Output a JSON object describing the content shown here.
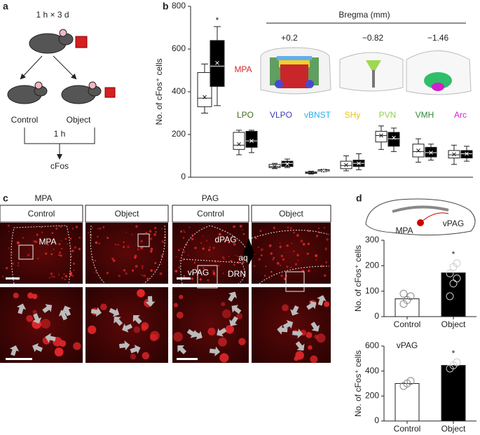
{
  "panels": [
    "a",
    "b",
    "c",
    "d"
  ],
  "diagram": {
    "schedule": "1 h × 3 d",
    "control": "Control",
    "object": "Object",
    "delay": "1 h",
    "readout": "cFos"
  },
  "images": {
    "groups": [
      "MPA",
      "PAG"
    ],
    "columns": [
      "Control",
      "Object",
      "Control",
      "Object"
    ],
    "regions": {
      "mpa": "MPA",
      "dpag": "dPAG",
      "aq": "aq",
      "vpag": "vPAG",
      "drn": "DRN"
    }
  },
  "inset": {
    "regions": [
      "MPA",
      "vPAG"
    ]
  },
  "chart_data": [
    {
      "type": "box",
      "y_label": "No. of cFos⁺ cells",
      "header": "Bregma (mm)",
      "levels": [
        "+0.2",
        "−0.82",
        "−1.46"
      ],
      "annotations": [
        "*"
      ],
      "categories": [
        "MPA",
        "LPO",
        "VLPO",
        "vBNST",
        "SHy",
        "PVN",
        "VMH",
        "Arc"
      ],
      "label_colors": [
        "#d7262b",
        "#3f6d1e",
        "#3a3ab8",
        "#2aaee0",
        "#e8c21a",
        "#8fd14f",
        "#2e8b3c",
        "#d21fcf"
      ],
      "ylim": [
        0,
        800
      ],
      "yticks": [
        0,
        200,
        400,
        600,
        800
      ],
      "series": [
        {
          "color": "#ffffff",
          "values": [
            {
              "min": 300,
              "q1": 330,
              "median": 370,
              "q3": 490,
              "max": 530,
              "mean": 375
            },
            {
              "min": 105,
              "q1": 130,
              "median": 150,
              "q3": 210,
              "max": 220,
              "mean": 155
            },
            {
              "min": 40,
              "q1": 45,
              "median": 50,
              "q3": 60,
              "max": 65,
              "mean": 50
            },
            {
              "min": 15,
              "q1": 18,
              "median": 22,
              "q3": 25,
              "max": 28,
              "mean": 22
            },
            {
              "min": 30,
              "q1": 40,
              "median": 55,
              "q3": 75,
              "max": 100,
              "mean": 57
            },
            {
              "min": 130,
              "q1": 165,
              "median": 195,
              "q3": 215,
              "max": 240,
              "mean": 195
            },
            {
              "min": 70,
              "q1": 95,
              "median": 120,
              "q3": 155,
              "max": 180,
              "mean": 125
            },
            {
              "min": 60,
              "q1": 90,
              "median": 105,
              "q3": 125,
              "max": 150,
              "mean": 107
            }
          ]
        },
        {
          "color": "#000000",
          "values": [
            {
              "min": 335,
              "q1": 425,
              "median": 520,
              "q3": 640,
              "max": 705,
              "mean": 535
            },
            {
              "min": 115,
              "q1": 140,
              "median": 170,
              "q3": 215,
              "max": 220,
              "mean": 170
            },
            {
              "min": 45,
              "q1": 50,
              "median": 65,
              "q3": 75,
              "max": 85,
              "mean": 62
            },
            {
              "min": 25,
              "q1": 28,
              "median": 30,
              "q3": 35,
              "max": 38,
              "mean": 32
            },
            {
              "min": 35,
              "q1": 50,
              "median": 65,
              "q3": 80,
              "max": 110,
              "mean": 65
            },
            {
              "min": 120,
              "q1": 145,
              "median": 180,
              "q3": 210,
              "max": 230,
              "mean": 185
            },
            {
              "min": 80,
              "q1": 95,
              "median": 115,
              "q3": 140,
              "max": 155,
              "mean": 115
            },
            {
              "min": 75,
              "q1": 90,
              "median": 110,
              "q3": 125,
              "max": 145,
              "mean": 110
            }
          ]
        }
      ]
    },
    {
      "type": "bar",
      "y_label": "No. of cFos⁺ cells",
      "annotations": [
        "*"
      ],
      "categories": [
        "Control",
        "Object"
      ],
      "values": [
        70,
        172
      ],
      "colors": [
        "#ffffff",
        "#000000"
      ],
      "points": [
        [
          50,
          65,
          80,
          90
        ],
        [
          80,
          130,
          150,
          170,
          195,
          210
        ]
      ],
      "ylim": [
        0,
        300
      ],
      "yticks": [
        0,
        100,
        200,
        300
      ]
    },
    {
      "type": "bar",
      "title": "vPAG",
      "y_label": "No. of cFos⁺ cells",
      "annotations": [
        "*"
      ],
      "categories": [
        "Control",
        "Object"
      ],
      "values": [
        300,
        445
      ],
      "colors": [
        "#ffffff",
        "#000000"
      ],
      "points": [
        [
          280,
          300,
          320
        ],
        [
          420,
          445,
          470
        ]
      ],
      "ylim": [
        0,
        600
      ],
      "yticks": [
        0,
        200,
        400,
        600
      ]
    }
  ]
}
